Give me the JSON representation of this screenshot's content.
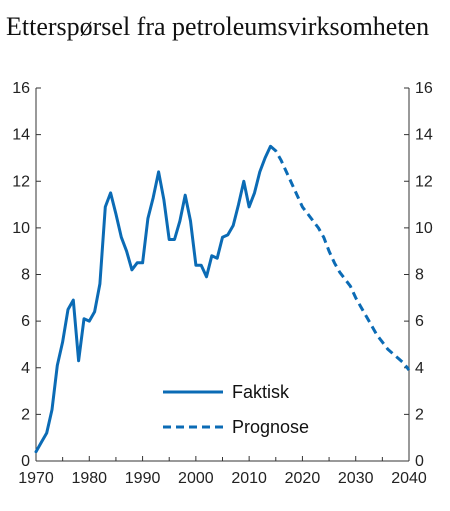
{
  "chart_data": {
    "type": "line",
    "title": "Etterspørsel fra petroleumsvirksomheten",
    "xlabel": "",
    "ylabel": "",
    "xlim": [
      1970,
      2040
    ],
    "ylim": [
      0,
      16
    ],
    "x_ticks": [
      1970,
      1980,
      1990,
      2000,
      2010,
      2020,
      2030,
      2040
    ],
    "y_ticks": [
      0,
      2,
      4,
      6,
      8,
      10,
      12,
      14,
      16
    ],
    "y_axis_sides": [
      "left",
      "right"
    ],
    "grid": false,
    "legend_position": "lower-center",
    "colors": {
      "series": "#0B6BB5"
    },
    "series": [
      {
        "name": "Faktisk",
        "style": "solid",
        "x": [
          1970,
          1971,
          1972,
          1973,
          1974,
          1975,
          1976,
          1977,
          1978,
          1979,
          1980,
          1981,
          1982,
          1983,
          1984,
          1985,
          1986,
          1987,
          1988,
          1989,
          1990,
          1991,
          1992,
          1993,
          1994,
          1995,
          1996,
          1997,
          1998,
          1999,
          2000,
          2001,
          2002,
          2003,
          2004,
          2005,
          2006,
          2007,
          2008,
          2009,
          2010,
          2011,
          2012,
          2013,
          2014
        ],
        "values": [
          0.4,
          0.8,
          1.2,
          2.2,
          4.1,
          5.1,
          6.5,
          6.9,
          4.3,
          6.1,
          6.0,
          6.4,
          7.6,
          10.9,
          11.5,
          10.6,
          9.6,
          9.0,
          8.2,
          8.5,
          8.5,
          10.4,
          11.3,
          12.4,
          11.2,
          9.5,
          9.5,
          10.3,
          11.4,
          10.3,
          8.4,
          8.4,
          7.9,
          8.8,
          8.7,
          9.6,
          9.7,
          10.1,
          11.0,
          12.0,
          10.9,
          11.5,
          12.4,
          13.0,
          13.5
        ]
      },
      {
        "name": "Prognose",
        "style": "dashed",
        "x": [
          2014,
          2015,
          2016,
          2017,
          2018,
          2019,
          2020,
          2021,
          2022,
          2023,
          2024,
          2025,
          2026,
          2027,
          2028,
          2029,
          2030,
          2031,
          2032,
          2033,
          2034,
          2035,
          2036,
          2037,
          2038,
          2039,
          2040
        ],
        "values": [
          13.5,
          13.3,
          12.9,
          12.4,
          11.9,
          11.4,
          10.9,
          10.6,
          10.3,
          10.0,
          9.6,
          9.0,
          8.5,
          8.1,
          7.8,
          7.5,
          7.0,
          6.6,
          6.2,
          5.8,
          5.4,
          5.1,
          4.8,
          4.6,
          4.4,
          4.2,
          3.9
        ]
      }
    ]
  }
}
